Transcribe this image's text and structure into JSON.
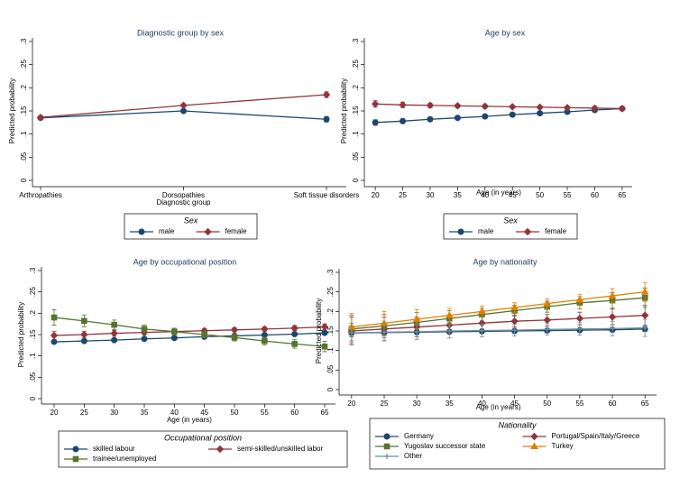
{
  "chart_data": [
    {
      "type": "line",
      "title": "Diagnostic group by sex",
      "x_label": "Diagnostic group",
      "y_label": "Predicted probability",
      "categories": [
        "Arthropathies",
        "Dorsopathies",
        "Soft tissue disorders"
      ],
      "ylim": [
        0,
        0.3
      ],
      "yticks": [
        0,
        {
          "value": 0.05,
          "label": ".05"
        },
        {
          "value": 0.1,
          "label": ".1"
        },
        {
          "value": 0.15,
          "label": ".15"
        },
        {
          "value": 0.2,
          "label": ".2"
        },
        {
          "value": 0.25,
          "label": ".25"
        },
        {
          "value": 0.3,
          "label": ".3"
        }
      ],
      "legend_title": "Sex",
      "series": [
        {
          "name": "male",
          "color": "#1a476f",
          "marker": "circle",
          "values": [
            0.135,
            0.15,
            0.132
          ],
          "errors": [
            0.003,
            0.003,
            0.006
          ]
        },
        {
          "name": "female",
          "color": "#90353b",
          "marker": "diamond",
          "values": [
            0.136,
            0.162,
            0.185
          ],
          "errors": [
            0.003,
            0.003,
            0.006
          ]
        }
      ]
    },
    {
      "type": "line",
      "title": "Age by sex",
      "x_label": "Age (in years)",
      "y_label": "Predicted probability",
      "x": [
        20,
        25,
        30,
        35,
        40,
        45,
        50,
        55,
        60,
        65
      ],
      "xlim": [
        18.5,
        66.5
      ],
      "xticks": [
        20,
        25,
        30,
        35,
        40,
        45,
        50,
        55,
        60,
        65
      ],
      "ylim": [
        0,
        0.3
      ],
      "yticks": [
        0,
        {
          "value": 0.05,
          "label": ".05"
        },
        {
          "value": 0.1,
          "label": ".1"
        },
        {
          "value": 0.15,
          "label": ".15"
        },
        {
          "value": 0.2,
          "label": ".2"
        },
        {
          "value": 0.25,
          "label": ".25"
        },
        {
          "value": 0.3,
          "label": ".3"
        }
      ],
      "legend_title": "Sex",
      "series": [
        {
          "name": "male",
          "color": "#1a476f",
          "marker": "circle",
          "values": [
            0.125,
            0.128,
            0.132,
            0.135,
            0.138,
            0.142,
            0.145,
            0.148,
            0.152,
            0.155
          ],
          "errors": [
            0.006,
            0.005,
            0.004,
            0.004,
            0.003,
            0.003,
            0.003,
            0.003,
            0.003,
            0.004
          ]
        },
        {
          "name": "female",
          "color": "#90353b",
          "marker": "diamond",
          "values": [
            0.165,
            0.163,
            0.162,
            0.161,
            0.16,
            0.159,
            0.158,
            0.157,
            0.156,
            0.155
          ],
          "errors": [
            0.007,
            0.006,
            0.005,
            0.004,
            0.004,
            0.003,
            0.003,
            0.003,
            0.004,
            0.004
          ]
        }
      ]
    },
    {
      "type": "line",
      "title": "Age by occupational position",
      "x_label": "Age (in years)",
      "y_label": "Predicted probability",
      "x": [
        20,
        25,
        30,
        35,
        40,
        45,
        50,
        55,
        60,
        65
      ],
      "xlim": [
        18.5,
        66.5
      ],
      "xticks": [
        20,
        25,
        30,
        35,
        40,
        45,
        50,
        55,
        60,
        65
      ],
      "ylim": [
        0,
        0.3
      ],
      "yticks": [
        0,
        {
          "value": 0.05,
          "label": ".05"
        },
        {
          "value": 0.1,
          "label": ".1"
        },
        {
          "value": 0.15,
          "label": ".15"
        },
        {
          "value": 0.2,
          "label": ".2"
        },
        {
          "value": 0.25,
          "label": ".25"
        },
        {
          "value": 0.3,
          "label": ".3"
        }
      ],
      "legend_title": "Occupational position",
      "series": [
        {
          "name": "skilled labour",
          "color": "#1a476f",
          "marker": "circle",
          "values": [
            0.133,
            0.135,
            0.137,
            0.14,
            0.142,
            0.145,
            0.147,
            0.149,
            0.151,
            0.154
          ],
          "errors": [
            0.004,
            0.004,
            0.003,
            0.003,
            0.003,
            0.003,
            0.003,
            0.003,
            0.004,
            0.004
          ]
        },
        {
          "name": "semi-skilled/unskilled labor",
          "color": "#90353b",
          "marker": "diamond",
          "values": [
            0.148,
            0.15,
            0.153,
            0.155,
            0.157,
            0.159,
            0.161,
            0.163,
            0.165,
            0.168
          ],
          "errors": [
            0.01,
            0.008,
            0.007,
            0.006,
            0.005,
            0.005,
            0.005,
            0.005,
            0.006,
            0.007
          ]
        },
        {
          "name": "trainee/unemployed",
          "color": "#55752f",
          "marker": "square",
          "values": [
            0.19,
            0.182,
            0.173,
            0.163,
            0.157,
            0.15,
            0.143,
            0.135,
            0.128,
            0.122
          ],
          "errors": [
            0.018,
            0.014,
            0.011,
            0.009,
            0.008,
            0.008,
            0.008,
            0.009,
            0.01,
            0.012
          ]
        }
      ]
    },
    {
      "type": "line",
      "title": "Age by nationality",
      "x_label": "Age (in years)",
      "y_label": "Predicted probability",
      "x": [
        20,
        25,
        30,
        35,
        40,
        45,
        50,
        55,
        60,
        65
      ],
      "xlim": [
        18.5,
        66.5
      ],
      "xticks": [
        20,
        25,
        30,
        35,
        40,
        45,
        50,
        55,
        60,
        65
      ],
      "ylim": [
        0,
        0.3
      ],
      "yticks": [
        0,
        {
          "value": 0.05,
          "label": ".05"
        },
        {
          "value": 0.1,
          "label": ".1"
        },
        {
          "value": 0.15,
          "label": ".15"
        },
        {
          "value": 0.2,
          "label": ".2"
        },
        {
          "value": 0.25,
          "label": ".25"
        },
        {
          "value": 0.3,
          "label": ".3"
        }
      ],
      "legend_title": "Nationality",
      "series": [
        {
          "name": "Germany",
          "color": "#1a476f",
          "marker": "circle",
          "values": [
            0.145,
            0.146,
            0.147,
            0.148,
            0.149,
            0.15,
            0.151,
            0.152,
            0.153,
            0.155
          ],
          "errors": [
            0.01,
            0.008,
            0.006,
            0.005,
            0.004,
            0.004,
            0.004,
            0.004,
            0.005,
            0.006
          ]
        },
        {
          "name": "Portugal/Spain/Italy/Greece",
          "color": "#90353b",
          "marker": "diamond",
          "values": [
            0.15,
            0.155,
            0.16,
            0.165,
            0.17,
            0.175,
            0.178,
            0.182,
            0.186,
            0.19
          ],
          "errors": [
            0.035,
            0.03,
            0.025,
            0.02,
            0.017,
            0.015,
            0.015,
            0.016,
            0.02,
            0.025
          ]
        },
        {
          "name": "Yugoslav successor state",
          "color": "#55752f",
          "marker": "square",
          "values": [
            0.155,
            0.163,
            0.172,
            0.182,
            0.192,
            0.202,
            0.212,
            0.222,
            0.228,
            0.235
          ],
          "errors": [
            0.035,
            0.03,
            0.025,
            0.02,
            0.016,
            0.014,
            0.014,
            0.016,
            0.02,
            0.025
          ]
        },
        {
          "name": "Turkey",
          "color": "#e37e00",
          "marker": "triangle",
          "values": [
            0.16,
            0.17,
            0.18,
            0.19,
            0.2,
            0.21,
            0.22,
            0.23,
            0.24,
            0.25
          ],
          "errors": [
            0.035,
            0.03,
            0.024,
            0.018,
            0.014,
            0.012,
            0.012,
            0.014,
            0.018,
            0.024
          ]
        },
        {
          "name": "Other",
          "color": "#6e8e9e",
          "marker": "plus",
          "values": [
            0.145,
            0.147,
            0.148,
            0.15,
            0.151,
            0.152,
            0.154,
            0.155,
            0.156,
            0.158
          ],
          "errors": [
            0.025,
            0.022,
            0.02,
            0.018,
            0.016,
            0.015,
            0.015,
            0.016,
            0.018,
            0.022
          ]
        }
      ]
    }
  ]
}
